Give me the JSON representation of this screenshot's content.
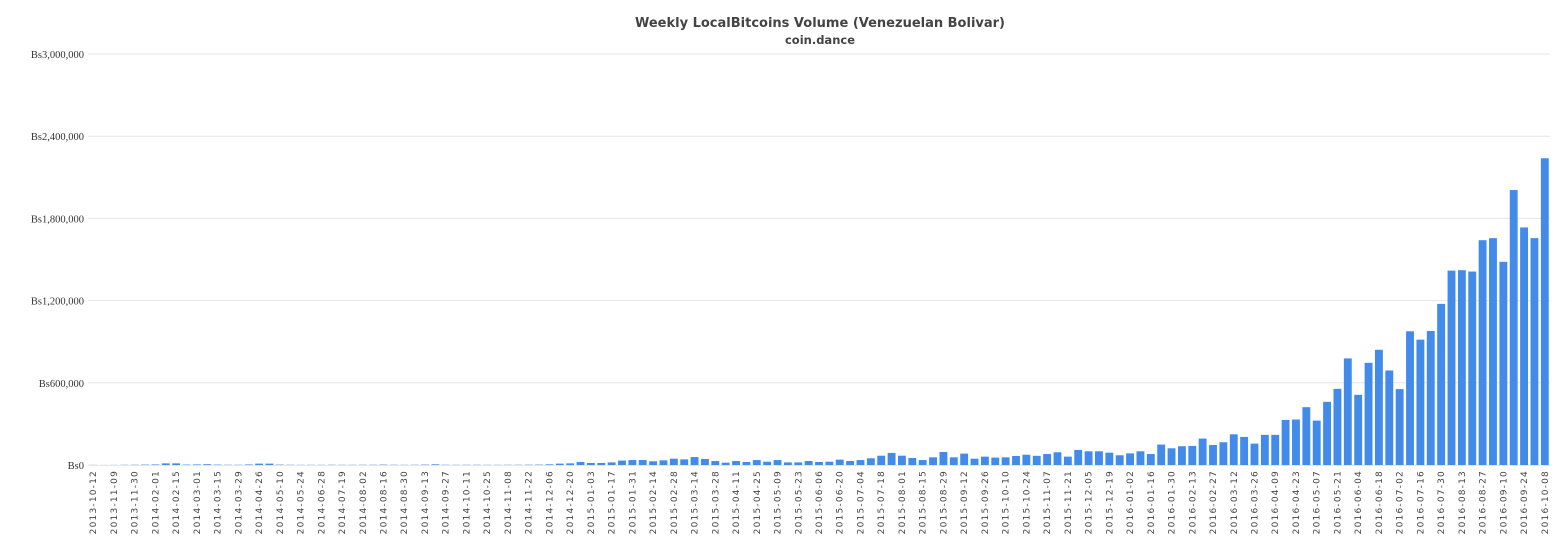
{
  "chart_data": {
    "type": "bar",
    "title": "Weekly LocalBitcoins Volume (Venezuelan Bolivar)",
    "subtitle": "coin.dance",
    "xlabel": "",
    "ylabel": "",
    "ylim": [
      0,
      3000000
    ],
    "y_ticks": [
      0,
      600000,
      1200000,
      1800000,
      2400000,
      3000000
    ],
    "y_tick_labels": [
      "Bs0",
      "Bs600,000",
      "Bs1,200,000",
      "Bs1,800,000",
      "Bs2,400,000",
      "Bs3,000,000"
    ],
    "grid": true,
    "legend": "none",
    "bar_color": "#428bea",
    "tick_every": 2,
    "tick_labels": [
      "2013-10-12",
      "2013-11-09",
      "2013-11-30",
      "2014-02-01",
      "2014-02-15",
      "2014-03-01",
      "2014-03-15",
      "2014-03-29",
      "2014-04-26",
      "2014-05-10",
      "2014-05-24",
      "2014-06-28",
      "2014-07-19",
      "2014-08-02",
      "2014-08-16",
      "2014-08-30",
      "2014-09-13",
      "2014-09-27",
      "2014-10-11",
      "2014-10-25",
      "2014-11-08",
      "2014-11-22",
      "2014-12-06",
      "2014-12-20",
      "2015-01-03",
      "2015-01-17",
      "2015-01-31",
      "2015-02-14",
      "2015-02-28",
      "2015-03-14",
      "2015-03-28",
      "2015-04-11",
      "2015-04-25",
      "2015-05-09",
      "2015-05-23",
      "2015-06-06",
      "2015-06-20",
      "2015-07-04",
      "2015-07-18",
      "2015-08-01",
      "2015-08-15",
      "2015-08-29",
      "2015-09-12",
      "2015-09-26",
      "2015-10-10",
      "2015-10-24",
      "2015-11-07",
      "2015-11-21",
      "2015-12-05",
      "2015-12-19",
      "2016-01-02",
      "2016-01-16",
      "2016-01-30",
      "2016-02-13",
      "2016-02-27",
      "2016-03-12",
      "2016-03-26",
      "2016-04-09",
      "2016-04-23",
      "2016-05-07",
      "2016-05-21",
      "2016-06-04",
      "2016-06-18",
      "2016-07-02",
      "2016-07-16",
      "2016-07-30",
      "2016-08-13",
      "2016-08-27",
      "2016-09-10",
      "2016-09-24",
      "2016-10-08"
    ],
    "values": [
      1000,
      500,
      800,
      1500,
      2000,
      3000,
      4000,
      12000,
      12000,
      3000,
      4000,
      6000,
      3000,
      2000,
      2000,
      4000,
      10000,
      10000,
      3000,
      2000,
      1500,
      1500,
      1500,
      2000,
      1500,
      1500,
      2000,
      2000,
      3000,
      2000,
      1500,
      2000,
      3000,
      5000,
      2000,
      1500,
      2000,
      2000,
      1500,
      1500,
      2000,
      2000,
      2500,
      3000,
      5000,
      10000,
      12000,
      22000,
      15000,
      15000,
      19000,
      32000,
      36000,
      36000,
      27000,
      34000,
      46000,
      41000,
      58000,
      44000,
      29000,
      17000,
      29000,
      22000,
      36000,
      24000,
      36000,
      19000,
      19000,
      29000,
      22000,
      24000,
      39000,
      29000,
      36000,
      49000,
      68000,
      88000,
      68000,
      51000,
      36000,
      56000,
      95000,
      56000,
      83000,
      46000,
      61000,
      54000,
      56000,
      66000,
      75000,
      67000,
      80000,
      93000,
      61000,
      110000,
      100000,
      100000,
      90000,
      71000,
      85000,
      100000,
      80000,
      149000,
      122000,
      137000,
      139000,
      193000,
      146000,
      166000,
      224000,
      205000,
      156000,
      220000,
      220000,
      329000,
      332000,
      422000,
      324000,
      461000,
      556000,
      778000,
      512000,
      746000,
      841000,
      690000,
      554000,
      976000,
      915000,
      978000,
      1176000,
      1419000,
      1422000,
      1412000,
      1641000,
      1656000,
      1483000,
      2007000,
      1734000,
      1656000,
      2239000
    ]
  }
}
